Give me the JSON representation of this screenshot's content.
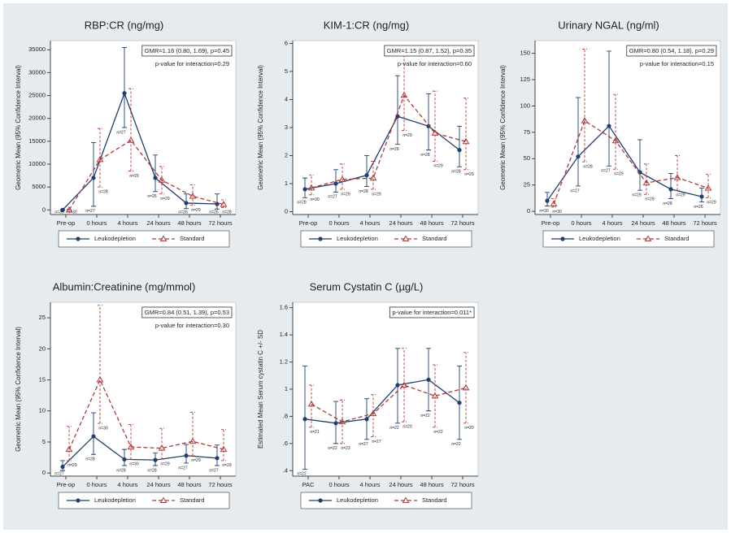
{
  "chart_data": [
    {
      "type": "line",
      "title": "RBP:CR (ng/mg)",
      "y_label": "Geometric Mean (95% Confidence Interval)",
      "categories": [
        "Pre-op",
        "0 hours",
        "4 hours",
        "24 hours",
        "48 hours",
        "72 hours"
      ],
      "ylim": [
        -1000,
        37000
      ],
      "yticks": [
        0,
        5000,
        10000,
        15000,
        20000,
        25000,
        30000,
        35000
      ],
      "annotations": [
        "GMR=1.16 (0.80, 1.69), p=0.45",
        "p-value for interaction=0.29"
      ],
      "series": [
        {
          "name": "Leukodepletion",
          "color": "#1f3f6e",
          "line_style": "solid",
          "marker": "circle",
          "values": [
            0,
            7000,
            25500,
            7000,
            1500,
            1300
          ],
          "lower": [
            0,
            800,
            18000,
            4000,
            300,
            200
          ],
          "upper": [
            100,
            14700,
            35500,
            12000,
            3500,
            3500
          ],
          "n_labels": [
            "n=30",
            "n=27",
            "n=27",
            "n=26",
            "n=26",
            "n=26"
          ]
        },
        {
          "name": "Standard",
          "color": "#b03a3a",
          "line_style": "dashed",
          "marker": "triangle",
          "values": [
            0,
            11000,
            15200,
            6500,
            3000,
            1200
          ],
          "lower": [
            0,
            5000,
            8500,
            3500,
            1000,
            500
          ],
          "upper": [
            100,
            17800,
            26500,
            9500,
            5500,
            2200
          ],
          "n_labels": [
            "n=30",
            "n=28",
            "n=29",
            "n=29",
            "n=29",
            "n=28"
          ]
        }
      ]
    },
    {
      "type": "line",
      "title": "KIM-1:CR (ng/mg)",
      "y_label": "Geometric Mean (95% Confidence Interval)",
      "categories": [
        "Pre-op",
        "0 hours",
        "4 hours",
        "24 hours",
        "48 hours",
        "72 hours"
      ],
      "ylim": [
        -0.1,
        6.1
      ],
      "yticks": [
        0,
        1,
        2,
        3,
        4,
        5,
        6
      ],
      "annotations": [
        "GMR=1.15 (0.87, 1.52), p=0.35",
        "p-value for interaction=0.60"
      ],
      "series": [
        {
          "name": "Leukodepletion",
          "color": "#1f3f6e",
          "line_style": "solid",
          "marker": "circle",
          "values": [
            0.8,
            1.0,
            1.3,
            3.4,
            3.05,
            2.2
          ],
          "lower": [
            0.5,
            0.7,
            0.9,
            2.4,
            2.2,
            1.6
          ],
          "upper": [
            1.2,
            1.5,
            2.0,
            4.85,
            4.2,
            3.05
          ],
          "n_labels": [
            "n=28",
            "n=27",
            "n=28",
            "n=28",
            "n=28",
            "n=28"
          ]
        },
        {
          "name": "Standard",
          "color": "#b03a3a",
          "line_style": "dashed",
          "marker": "triangle",
          "values": [
            0.85,
            1.15,
            1.2,
            4.15,
            2.8,
            2.5
          ],
          "lower": [
            0.6,
            0.8,
            0.8,
            2.9,
            1.8,
            1.5
          ],
          "upper": [
            1.3,
            1.7,
            1.8,
            5.85,
            4.3,
            4.05
          ],
          "n_labels": [
            "n=30",
            "n=29",
            "n=29",
            "n=29",
            "n=29",
            "n=29"
          ]
        }
      ]
    },
    {
      "type": "line",
      "title": "Urinary NGAL (ng/ml)",
      "y_label": "Geometric Mean (95% Confidence Interval)",
      "categories": [
        "Pre-op",
        "0 hours",
        "4 hours",
        "24 hours",
        "48 hours",
        "72 hours"
      ],
      "ylim": [
        -3,
        162
      ],
      "yticks": [
        0,
        25,
        50,
        75,
        100,
        125,
        150
      ],
      "annotations": [
        "GMR=0.80 (0.54, 1.18), p=0.29",
        "p-value for interaction=0.15"
      ],
      "series": [
        {
          "name": "Leukodepletion",
          "color": "#1f3f6e",
          "line_style": "solid",
          "marker": "circle",
          "values": [
            10,
            52,
            81,
            37,
            21,
            14
          ],
          "lower": [
            5,
            24,
            43,
            20,
            12,
            9
          ],
          "upper": [
            18,
            108,
            152,
            68,
            36,
            22
          ],
          "n_labels": [
            "n=30",
            "n=27",
            "n=27",
            "n=29",
            "n=28",
            "n=26"
          ]
        },
        {
          "name": "Standard",
          "color": "#b03a3a",
          "line_style": "dashed",
          "marker": "triangle",
          "values": [
            7,
            86,
            67,
            27,
            32,
            22
          ],
          "lower": [
            4,
            47,
            40,
            16,
            20,
            13
          ],
          "upper": [
            12,
            154,
            111,
            45,
            53,
            35
          ],
          "n_labels": [
            "n=30",
            "n=28",
            "n=29",
            "n=29",
            "n=29",
            "n=29"
          ]
        }
      ]
    },
    {
      "type": "line",
      "title": "Albumin:Creatinine (mg/mmol)",
      "y_label": "Geometric Mean (95% Confidence Interval)",
      "categories": [
        "Pre-op",
        "0 hours",
        "4 hours",
        "24 hours",
        "48 hours",
        "72 hours"
      ],
      "ylim": [
        -0.5,
        27.5
      ],
      "yticks": [
        0,
        5,
        10,
        15,
        20,
        25
      ],
      "annotations": [
        "GMR=0.84 (0.51, 1.39), p=0.53",
        "p-value for interaction=0.30"
      ],
      "series": [
        {
          "name": "Leukodepletion",
          "color": "#1f3f6e",
          "line_style": "solid",
          "marker": "circle",
          "values": [
            1,
            5.9,
            2.2,
            2.1,
            2.8,
            2.4
          ],
          "lower": [
            0.4,
            3,
            1.2,
            1.2,
            1.6,
            1.2
          ],
          "upper": [
            2,
            9.7,
            3.8,
            3.2,
            4.6,
            4.5
          ],
          "n_labels": [
            "n=27",
            "n=28",
            "n=28",
            "n=28",
            "n=27",
            "n=27"
          ]
        },
        {
          "name": "Standard",
          "color": "#b03a3a",
          "line_style": "dashed",
          "marker": "triangle",
          "values": [
            3.8,
            15,
            4.2,
            4.0,
            5.1,
            3.8
          ],
          "lower": [
            2,
            8,
            2.2,
            2.2,
            2.8,
            2
          ],
          "upper": [
            7.5,
            27,
            7.8,
            7.2,
            9.8,
            7
          ],
          "n_labels": [
            "n=29",
            "n=30",
            "n=30",
            "n=29",
            "n=29",
            "n=29"
          ]
        }
      ]
    },
    {
      "type": "line",
      "title": "Serum Cystatin C (µg/L)",
      "y_label": "Estimated Mean Serum cystatin C +/- SD",
      "categories": [
        "PAC",
        "0 hours",
        "4 hours",
        "24 hours",
        "48 hours",
        "72 hours"
      ],
      "ylim": [
        0.36,
        1.64
      ],
      "yticks": [
        {
          "value": 0.4,
          "label": ".4"
        },
        {
          "value": 0.6,
          "label": ".6"
        },
        {
          "value": 0.8,
          "label": ".8"
        },
        1,
        1.2,
        1.4,
        1.6
      ],
      "annotations": [
        "p-value for interaction=0.011*"
      ],
      "series": [
        {
          "name": "Leukodepletion",
          "color": "#1f3f6e",
          "line_style": "solid",
          "marker": "circle",
          "values": [
            0.78,
            0.75,
            0.78,
            1.03,
            1.07,
            0.9
          ],
          "lower": [
            0.41,
            0.6,
            0.63,
            0.75,
            0.84,
            0.63
          ],
          "upper": [
            1.17,
            0.91,
            0.93,
            1.3,
            1.3,
            1.17
          ],
          "n_labels": [
            "n=22",
            "n=22",
            "n=27",
            "n=22",
            "n=22",
            "n=22"
          ]
        },
        {
          "name": "Standard",
          "color": "#b03a3a",
          "line_style": "dashed",
          "marker": "triangle",
          "values": [
            0.89,
            0.76,
            0.82,
            1.03,
            0.95,
            1.01
          ],
          "lower": [
            0.72,
            0.6,
            0.65,
            0.76,
            0.72,
            0.75
          ],
          "upper": [
            1.03,
            0.92,
            0.96,
            1.3,
            1.18,
            1.27
          ],
          "n_labels": [
            "n=21",
            "n=23",
            "n=27",
            "n=20",
            "n=22",
            "n=20"
          ]
        }
      ]
    }
  ]
}
